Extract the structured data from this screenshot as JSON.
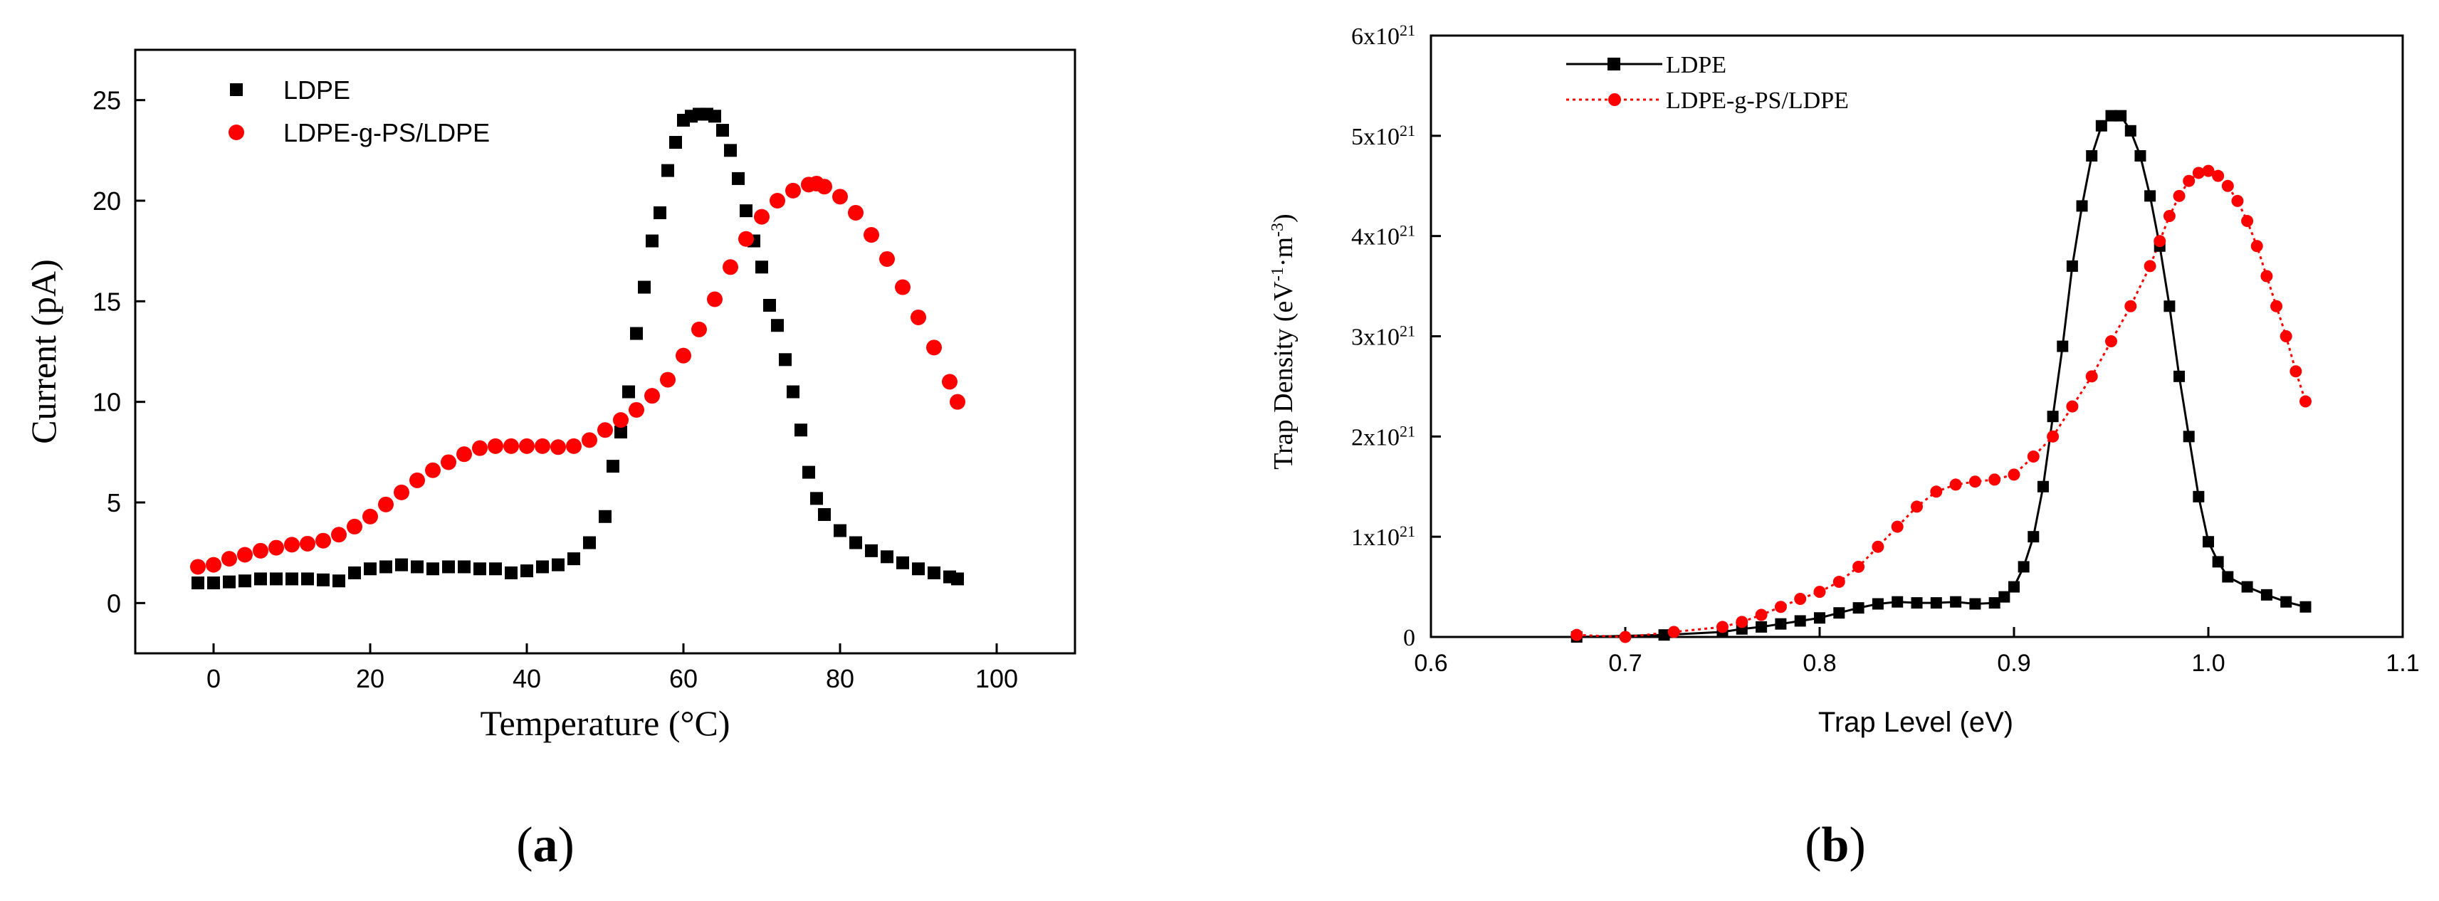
{
  "chart_data": [
    {
      "type": "scatter",
      "panel_label": "(a)",
      "title": "",
      "xlabel": "Temperature (°C)",
      "ylabel": "Current (pA)",
      "xlim": [
        -10,
        110
      ],
      "ylim": [
        -2.5,
        27.5
      ],
      "xticks": [
        0,
        20,
        40,
        60,
        80,
        100
      ],
      "yticks": [
        0,
        5,
        10,
        15,
        20,
        25
      ],
      "xtick_labels": [
        "0",
        "20",
        "40",
        "60",
        "80",
        "100"
      ],
      "ytick_labels": [
        "0",
        "5",
        "10",
        "15",
        "20",
        "25"
      ],
      "grid": false,
      "legend_position": "top-left",
      "series": [
        {
          "name": "LDPE",
          "color": "#000000",
          "marker": "square",
          "x": [
            -2,
            0,
            2,
            4,
            6,
            8,
            10,
            12,
            14,
            16,
            18,
            20,
            22,
            24,
            26,
            28,
            30,
            32,
            34,
            36,
            38,
            40,
            42,
            44,
            46,
            48,
            50,
            51,
            52,
            53,
            54,
            55,
            56,
            57,
            58,
            59,
            60,
            61,
            62,
            63,
            64,
            65,
            66,
            67,
            68,
            69,
            70,
            71,
            72,
            73,
            74,
            75,
            76,
            77,
            78,
            80,
            82,
            84,
            86,
            88,
            90,
            92,
            94,
            95
          ],
          "y": [
            1.0,
            1.0,
            1.05,
            1.1,
            1.2,
            1.2,
            1.2,
            1.2,
            1.15,
            1.1,
            1.5,
            1.7,
            1.8,
            1.9,
            1.8,
            1.7,
            1.8,
            1.8,
            1.7,
            1.7,
            1.5,
            1.6,
            1.8,
            1.9,
            2.2,
            3.0,
            4.3,
            6.8,
            8.5,
            10.5,
            13.4,
            15.7,
            18.0,
            19.4,
            21.5,
            22.9,
            24.0,
            24.2,
            24.3,
            24.3,
            24.2,
            23.5,
            22.5,
            21.1,
            19.5,
            18.0,
            16.7,
            14.8,
            13.8,
            12.1,
            10.5,
            8.6,
            6.5,
            5.2,
            4.4,
            3.6,
            3.0,
            2.6,
            2.3,
            2.0,
            1.7,
            1.5,
            1.3,
            1.2
          ]
        },
        {
          "name": "LDPE-g-PS/LDPE",
          "color": "#ff0000",
          "marker": "circle",
          "x": [
            -2,
            0,
            2,
            4,
            6,
            8,
            10,
            12,
            14,
            16,
            18,
            20,
            22,
            24,
            26,
            28,
            30,
            32,
            34,
            36,
            38,
            40,
            42,
            44,
            46,
            48,
            50,
            52,
            54,
            56,
            58,
            60,
            62,
            64,
            66,
            68,
            70,
            72,
            74,
            76,
            77,
            78,
            80,
            82,
            84,
            86,
            88,
            90,
            92,
            94,
            95
          ],
          "y": [
            1.8,
            1.9,
            2.2,
            2.4,
            2.6,
            2.75,
            2.9,
            2.95,
            3.1,
            3.4,
            3.8,
            4.3,
            4.9,
            5.5,
            6.1,
            6.6,
            7.0,
            7.4,
            7.7,
            7.8,
            7.8,
            7.8,
            7.8,
            7.75,
            7.8,
            8.1,
            8.6,
            9.1,
            9.6,
            10.3,
            11.1,
            12.3,
            13.6,
            15.1,
            16.7,
            18.1,
            19.2,
            20.0,
            20.5,
            20.8,
            20.85,
            20.7,
            20.2,
            19.4,
            18.3,
            17.1,
            15.7,
            14.2,
            12.7,
            11.0,
            10.0
          ]
        }
      ]
    },
    {
      "type": "line",
      "panel_label": "(b)",
      "title": "",
      "xlabel": "Trap Level (eV)",
      "ylabel": "Trap Density (eV⁻¹·m⁻³)",
      "xlim": [
        0.6,
        1.1
      ],
      "ylim": [
        0,
        6e+21
      ],
      "xticks": [
        0.6,
        0.7,
        0.8,
        0.9,
        1.0,
        1.1
      ],
      "yticks": [
        0,
        1e+21,
        2e+21,
        3e+21,
        4e+21,
        5e+21,
        6e+21
      ],
      "xtick_labels": [
        "0.6",
        "0.7",
        "0.8",
        "0.9",
        "1.0",
        "1.1"
      ],
      "ytick_labels": [
        "0",
        "1x10",
        "2x10",
        "3x10",
        "4x10",
        "5x10",
        "6x10"
      ],
      "ytick_exponent": "21",
      "grid": false,
      "legend_position": "top-left",
      "series": [
        {
          "name": "LDPE",
          "color": "#000000",
          "marker": "square",
          "line": "solid",
          "x": [
            0.675,
            0.72,
            0.75,
            0.76,
            0.77,
            0.78,
            0.79,
            0.8,
            0.81,
            0.82,
            0.83,
            0.84,
            0.85,
            0.86,
            0.87,
            0.88,
            0.89,
            0.895,
            0.9,
            0.905,
            0.91,
            0.915,
            0.92,
            0.925,
            0.93,
            0.935,
            0.94,
            0.945,
            0.95,
            0.955,
            0.96,
            0.965,
            0.97,
            0.975,
            0.98,
            0.985,
            0.99,
            0.995,
            1.0,
            1.005,
            1.01,
            1.02,
            1.03,
            1.04,
            1.05
          ],
          "y": [
            0,
            2e+19,
            5e+19,
            8e+19,
            1e+20,
            1.3e+20,
            1.6e+20,
            1.9e+20,
            2.4e+20,
            2.9e+20,
            3.3e+20,
            3.5e+20,
            3.4e+20,
            3.4e+20,
            3.5e+20,
            3.3e+20,
            3.4e+20,
            4e+20,
            5e+20,
            7e+20,
            1e+21,
            1.5e+21,
            2.2e+21,
            2.9e+21,
            3.7e+21,
            4.3e+21,
            4.8e+21,
            5.1e+21,
            5.2e+21,
            5.2e+21,
            5.05e+21,
            4.8e+21,
            4.4e+21,
            3.9e+21,
            3.3e+21,
            2.6e+21,
            2e+21,
            1.4e+21,
            9.5e+20,
            7.5e+20,
            6e+20,
            5e+20,
            4.2e+20,
            3.5e+20,
            3e+20
          ]
        },
        {
          "name": "LDPE-g-PS/LDPE",
          "color": "#ff0000",
          "marker": "circle",
          "line": "dotted",
          "x": [
            0.675,
            0.7,
            0.725,
            0.75,
            0.76,
            0.77,
            0.78,
            0.79,
            0.8,
            0.81,
            0.82,
            0.83,
            0.84,
            0.85,
            0.86,
            0.87,
            0.88,
            0.89,
            0.9,
            0.91,
            0.92,
            0.93,
            0.94,
            0.95,
            0.96,
            0.97,
            0.975,
            0.98,
            0.985,
            0.99,
            0.995,
            1.0,
            1.005,
            1.01,
            1.015,
            1.02,
            1.025,
            1.03,
            1.035,
            1.04,
            1.045,
            1.05
          ],
          "y": [
            2e+19,
            0.0,
            5e+19,
            1e+20,
            1.5e+20,
            2.2e+20,
            3e+20,
            3.8e+20,
            4.5e+20,
            5.5e+20,
            7e+20,
            9e+20,
            1.1e+21,
            1.3e+21,
            1.45e+21,
            1.52e+21,
            1.55e+21,
            1.57e+21,
            1.62e+21,
            1.8e+21,
            2e+21,
            2.3e+21,
            2.6e+21,
            2.95e+21,
            3.3e+21,
            3.7e+21,
            3.95e+21,
            4.2e+21,
            4.4e+21,
            4.55e+21,
            4.63e+21,
            4.65e+21,
            4.6e+21,
            4.5e+21,
            4.35e+21,
            4.15e+21,
            3.9e+21,
            3.6e+21,
            3.3e+21,
            3e+21,
            2.65e+21,
            2.35e+21
          ]
        }
      ]
    }
  ]
}
